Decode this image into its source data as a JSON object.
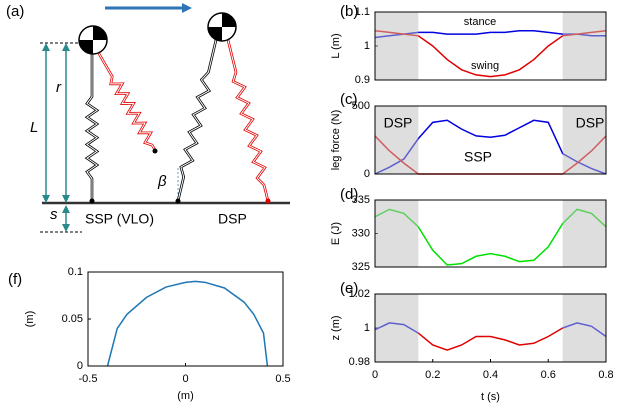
{
  "diagram": {
    "label": "(a)",
    "length": "L",
    "radius": "r",
    "offset": "s",
    "angle": "β",
    "phase_left": "SSP (VLO)",
    "phase_right": "DSP"
  },
  "chart_data": [
    {
      "type": "line",
      "label": "(b)",
      "ylabel": "L (m)",
      "xlim": [
        0,
        0.8
      ],
      "ylim": [
        0.9,
        1.1
      ],
      "yticks": [
        0.9,
        1,
        1.1
      ],
      "shaded": [
        [
          0,
          0.15
        ],
        [
          0.65,
          0.8
        ]
      ],
      "x": [
        0,
        0.05,
        0.1,
        0.15,
        0.2,
        0.25,
        0.3,
        0.35,
        0.4,
        0.45,
        0.5,
        0.55,
        0.6,
        0.65,
        0.7,
        0.75,
        0.8
      ],
      "series": [
        {
          "color": "#0000e0",
          "values": [
            1.025,
            1.03,
            1.035,
            1.04,
            1.04,
            1.035,
            1.035,
            1.035,
            1.04,
            1.04,
            1.045,
            1.045,
            1.04,
            1.035,
            1.035,
            1.03,
            1.03
          ]
        },
        {
          "color": "#e00000",
          "values": [
            1.045,
            1.04,
            1.035,
            1.03,
            1.0,
            0.96,
            0.93,
            0.915,
            0.91,
            0.915,
            0.93,
            0.96,
            1.0,
            1.03,
            1.035,
            1.04,
            1.045
          ]
        }
      ],
      "annotations": [
        "stance",
        "swing"
      ]
    },
    {
      "type": "line",
      "label": "(c)",
      "ylabel": "leg force (N)",
      "xlim": [
        0,
        0.8
      ],
      "ylim": [
        0,
        500
      ],
      "yticks": [
        0,
        500
      ],
      "shaded": [
        [
          0,
          0.15
        ],
        [
          0.65,
          0.8
        ]
      ],
      "x": [
        0,
        0.05,
        0.1,
        0.15,
        0.2,
        0.25,
        0.3,
        0.35,
        0.4,
        0.45,
        0.5,
        0.55,
        0.6,
        0.65,
        0.7,
        0.75,
        0.8
      ],
      "series": [
        {
          "color": "#0000e0",
          "values": [
            0,
            50,
            110,
            260,
            380,
            395,
            330,
            280,
            270,
            285,
            340,
            395,
            380,
            150,
            90,
            40,
            0
          ]
        },
        {
          "color": "#e00000",
          "values": [
            280,
            170,
            80,
            0,
            0,
            0,
            0,
            0,
            0,
            0,
            0,
            0,
            0,
            0,
            80,
            170,
            280
          ]
        }
      ],
      "annotations": [
        "DSP",
        "DSP",
        "SSP"
      ]
    },
    {
      "type": "line",
      "label": "(d)",
      "ylabel": "E (J)",
      "xlim": [
        0,
        0.8
      ],
      "ylim": [
        325,
        335
      ],
      "yticks": [
        325,
        330,
        335
      ],
      "shaded": [
        [
          0,
          0.15
        ],
        [
          0.65,
          0.8
        ]
      ],
      "x": [
        0,
        0.05,
        0.1,
        0.15,
        0.2,
        0.25,
        0.3,
        0.35,
        0.4,
        0.45,
        0.5,
        0.55,
        0.6,
        0.65,
        0.7,
        0.75,
        0.8
      ],
      "series": [
        {
          "color": "#00e000",
          "values": [
            332.5,
            333.6,
            333,
            331,
            327.5,
            325.3,
            325.5,
            326.6,
            327,
            326.6,
            325.8,
            326,
            328,
            331.5,
            333.6,
            333,
            331
          ]
        }
      ]
    },
    {
      "type": "line",
      "label": "(e)",
      "ylabel": "z (m)",
      "xlabel": "t (s)",
      "xlim": [
        0,
        0.8
      ],
      "ylim": [
        0.98,
        1.02
      ],
      "yticks": [
        0.98,
        1,
        1.02
      ],
      "xticks": [
        0,
        0.2,
        0.4,
        0.6,
        0.8
      ],
      "shaded": [
        [
          0,
          0.15
        ],
        [
          0.65,
          0.8
        ]
      ],
      "x": [
        0,
        0.05,
        0.1,
        0.15,
        0.2,
        0.25,
        0.3,
        0.35,
        0.4,
        0.45,
        0.5,
        0.55,
        0.6,
        0.65,
        0.7,
        0.75,
        0.8
      ],
      "series": [
        {
          "color": "#0000e0",
          "values": [
            0.999,
            1.003,
            1.002,
            0.997,
            null,
            null,
            null,
            null,
            null,
            null,
            null,
            null,
            null,
            1.0,
            1.003,
            1.001,
            0.995
          ]
        },
        {
          "color": "#e00000",
          "values": [
            null,
            null,
            null,
            0.997,
            0.99,
            0.987,
            0.99,
            0.995,
            0.995,
            0.993,
            0.99,
            0.991,
            0.995,
            1.0,
            null,
            null,
            null
          ]
        }
      ]
    },
    {
      "type": "line",
      "label": "(f)",
      "ylabel": "(m)",
      "xlabel": "(m)",
      "xlim": [
        -0.5,
        0.5
      ],
      "ylim": [
        0,
        0.1
      ],
      "xticks": [
        -0.5,
        0,
        0.5
      ],
      "yticks": [
        0,
        0.05,
        0.1
      ],
      "x": [
        -0.4,
        -0.35,
        -0.3,
        -0.2,
        -0.1,
        0,
        0.05,
        0.1,
        0.2,
        0.3,
        0.35,
        0.4,
        0.42
      ],
      "series": [
        {
          "color": "#1f77b4",
          "values": [
            0,
            0.04,
            0.055,
            0.073,
            0.084,
            0.089,
            0.09,
            0.089,
            0.083,
            0.068,
            0.055,
            0.035,
            0
          ]
        }
      ]
    }
  ]
}
